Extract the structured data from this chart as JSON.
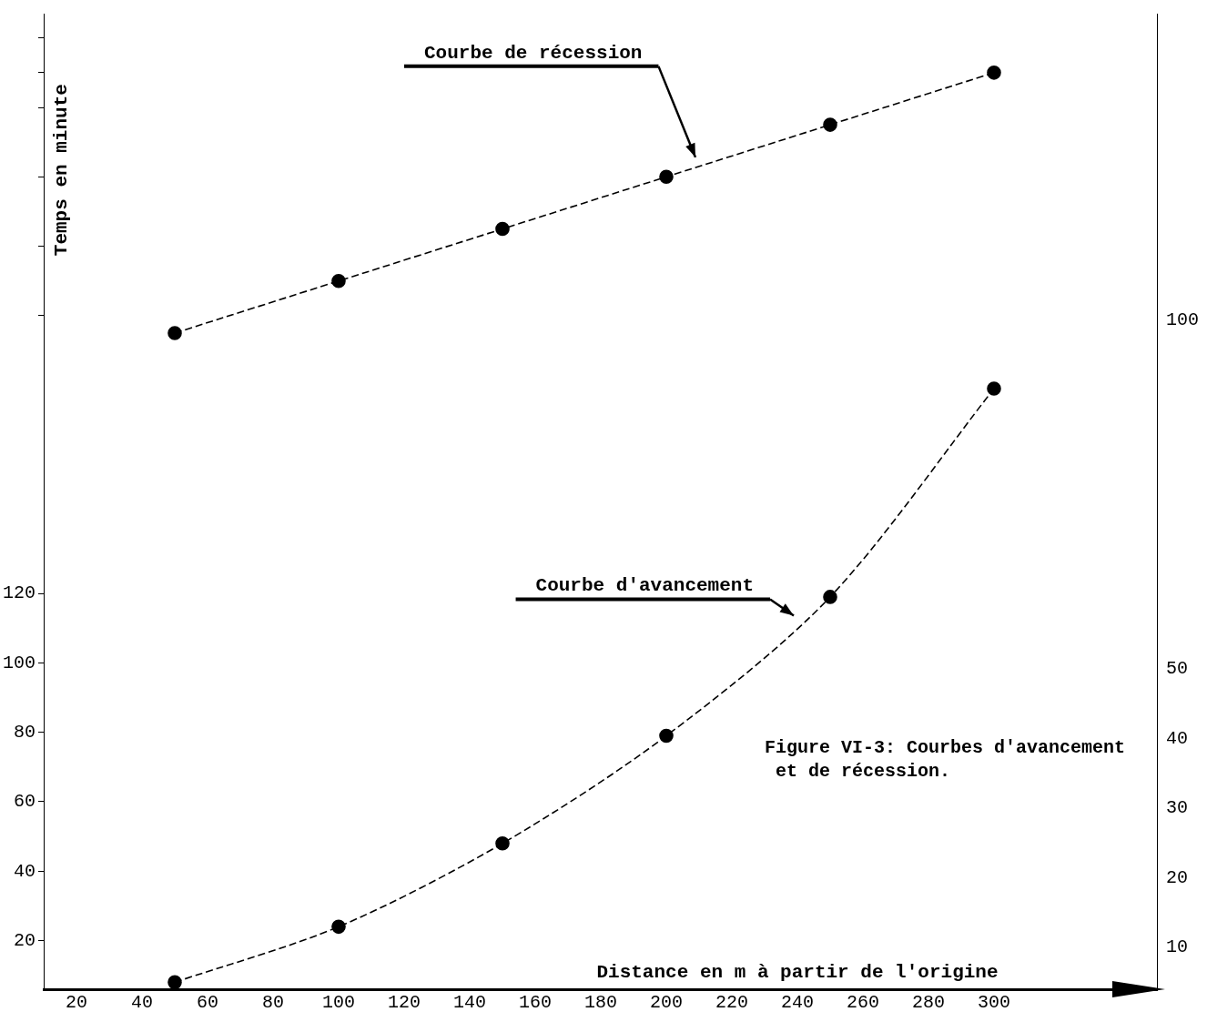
{
  "chart_data": {
    "type": "line",
    "xlabel": "Distance en m à partir de l'origine",
    "ylabel": "Temps en minute",
    "x": [
      50,
      100,
      150,
      200,
      250,
      300
    ],
    "series": [
      {
        "name": "Courbe de récession",
        "color": "#000000",
        "values": [
          195,
          210,
          225,
          240,
          255,
          270
        ]
      },
      {
        "name": "Courbe d'avancement",
        "color": "#000000",
        "values": [
          8,
          24,
          48,
          79,
          119,
          179
        ]
      }
    ],
    "xlim": [
      10,
      350
    ],
    "xticks": [
      20,
      40,
      60,
      80,
      100,
      120,
      140,
      160,
      180,
      200,
      220,
      240,
      260,
      280,
      300
    ],
    "ylim": [
      6,
      287
    ],
    "yticks": [
      20,
      40,
      60,
      80,
      100,
      120,
      {
        "value": 200,
        "label": null
      },
      {
        "value": 220,
        "label": null
      },
      {
        "value": 240,
        "label": null
      },
      {
        "value": 260,
        "label": null
      },
      {
        "value": 270,
        "label": null
      },
      {
        "value": 280,
        "label": null
      }
    ],
    "y2lim": [
      4,
      144
    ],
    "y2ticks": [
      10,
      20,
      30,
      40,
      50,
      100
    ],
    "marker": "circle",
    "line_style": "dashed",
    "grid": false,
    "legend": false,
    "annotations": [
      "Figure VI-3: Courbes d'avancement\n et de récession."
    ]
  }
}
